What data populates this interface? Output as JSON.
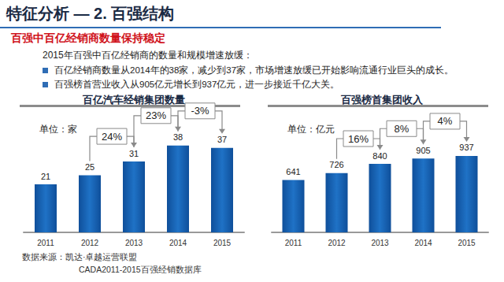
{
  "header": {
    "title": "特征分析 — 2. 百强结构",
    "subtitle": "百强中百亿经销商数量保持稳定"
  },
  "intro": "2015年百强中百亿经销商的数量和规模增速放缓：",
  "bullets": [
    "百亿经销商数量从2014年的38家，减少到37家，市场增速放缓已开始影响流通行业巨头的成长。",
    "百强榜首营业收入从905亿元增长到937亿元，进一步接近千亿大关。"
  ],
  "chart_data": [
    {
      "type": "bar",
      "title": "百亿汽车经销集团数量",
      "unit": "单位：家",
      "categories": [
        "2011",
        "2012",
        "2013",
        "2014",
        "2015"
      ],
      "values": [
        21,
        25,
        31,
        38,
        37
      ],
      "color": "#1f72c6",
      "ylim": [
        0,
        50
      ],
      "grid": false,
      "tick_labels": "x",
      "data_labels": true,
      "annotations": [
        {
          "from": "2012",
          "to": "2013",
          "label": "24%"
        },
        {
          "from": "2013",
          "to": "2014",
          "label": "23%"
        },
        {
          "from": "2014",
          "to": "2015",
          "label": "-3%"
        }
      ]
    },
    {
      "type": "bar",
      "title": "百强榜首集团收入",
      "unit": "单位：亿元",
      "categories": [
        "2011",
        "2012",
        "2013",
        "2014",
        "2015"
      ],
      "values": [
        641,
        726,
        840,
        905,
        937
      ],
      "color": "#1f72c6",
      "ylim": [
        0,
        1400
      ],
      "grid": false,
      "tick_labels": "x",
      "data_labels": true,
      "annotations": [
        {
          "from": "2012",
          "to": "2013",
          "label": "16%"
        },
        {
          "from": "2013",
          "to": "2014",
          "label": "8%"
        },
        {
          "from": "2014",
          "to": "2015",
          "label": "4%"
        }
      ]
    }
  ],
  "source": [
    "数据来源：凯达·卓越运营联盟",
    "CADA2011-2015百强经销数据库"
  ]
}
